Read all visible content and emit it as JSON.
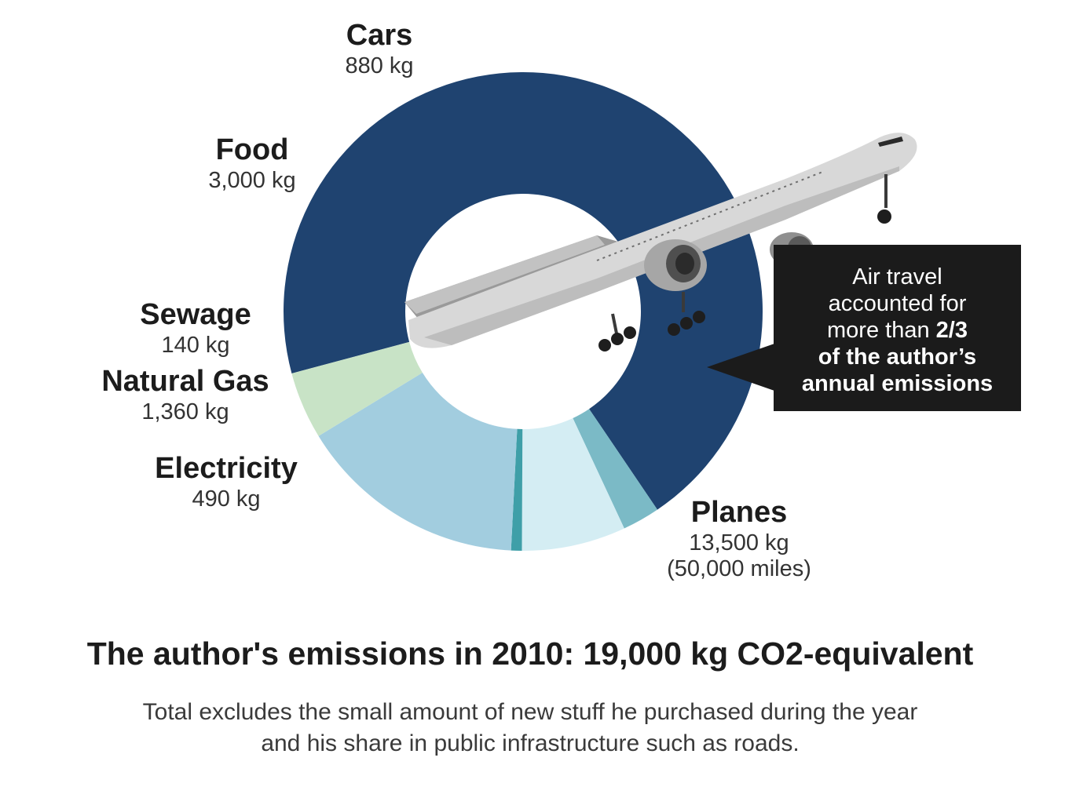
{
  "chart_data": {
    "type": "pie",
    "variant": "donut",
    "unit": "kg",
    "title": "The author's emissions in 2010: 19,000 kg CO2-equivalent",
    "note_line1": "Total excludes the small amount of new stuff he purchased during the year",
    "note_line2": "and his share in public infrastructure such as roads.",
    "slices": [
      {
        "name": "Planes",
        "value": 13500,
        "value_label": "13,500 kg",
        "extra": "(50,000 miles)",
        "color": "#1f4370"
      },
      {
        "name": "Electricity",
        "value": 490,
        "value_label": "490 kg",
        "color": "#7bbac6"
      },
      {
        "name": "Natural Gas",
        "value": 1360,
        "value_label": "1,360 kg",
        "color": "#d4edf3"
      },
      {
        "name": "Sewage",
        "value": 140,
        "value_label": "140 kg",
        "color": "#3f9fa8"
      },
      {
        "name": "Food",
        "value": 3000,
        "value_label": "3,000 kg",
        "color": "#a2cddf"
      },
      {
        "name": "Cars",
        "value": 880,
        "value_label": "880 kg",
        "color": "#c8e3c6"
      }
    ]
  },
  "callout": {
    "line1": "Air travel",
    "line2": "accounted for",
    "line3_prefix": "more than ",
    "line3_bold": "2/3",
    "line4": "of the author’s",
    "line5": "annual emissions"
  }
}
